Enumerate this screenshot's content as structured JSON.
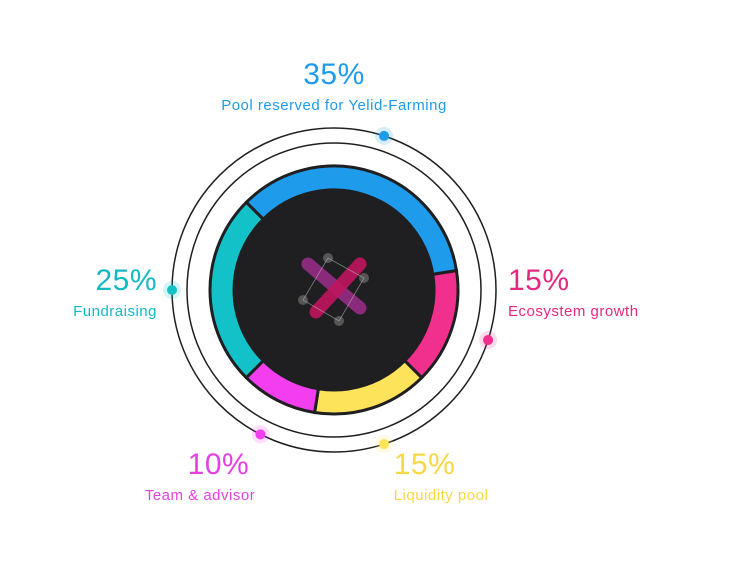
{
  "chart_data": {
    "type": "pie",
    "style": "donut",
    "slices": [
      {
        "label": "Pool reserved for Yelid-Farming",
        "value": 35,
        "value_label": "35%",
        "color": "#1e9bea"
      },
      {
        "label": "Ecosystem growth",
        "value": 15,
        "value_label": "15%",
        "color": "#f0308c"
      },
      {
        "label": "Liquidity pool",
        "value": 15,
        "value_label": "15%",
        "color": "#fde35a"
      },
      {
        "label": "Team & advisor",
        "value": 10,
        "value_label": "10%",
        "color": "#f33ef0"
      },
      {
        "label": "Fundraising",
        "value": 25,
        "value_label": "25%",
        "color": "#13c1c8"
      }
    ],
    "center_color": "#1f1f21",
    "ring_color": "#1f1f21"
  }
}
